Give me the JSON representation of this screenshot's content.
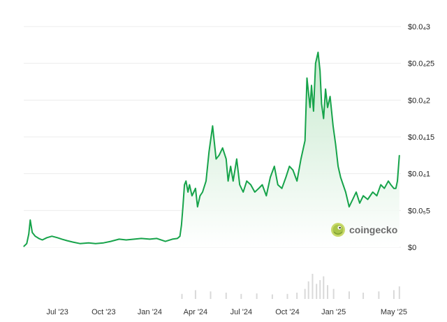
{
  "chart_data": {
    "type": "area",
    "title": "",
    "xlabel": "",
    "ylabel": "",
    "ylim": [
      0,
      3e-05
    ],
    "line_color": "#16a34a",
    "fill_color": "#d7f0dc",
    "volume_color": "#d9d9d9",
    "grid": true,
    "legend": "none",
    "y_ticks": [
      {
        "value": 0,
        "label": "$0"
      },
      {
        "value": 5e-06,
        "label": "$0.0₅5"
      },
      {
        "value": 1e-05,
        "label": "$0.0₄1"
      },
      {
        "value": 1.5e-05,
        "label": "$0.0₄15"
      },
      {
        "value": 2e-05,
        "label": "$0.0₄2"
      },
      {
        "value": 2.5e-05,
        "label": "$0.0₄25"
      },
      {
        "value": 3e-05,
        "label": "$0.0₄3"
      }
    ],
    "x_ticks": [
      {
        "date": "2023-07-01",
        "label": "Jul '23"
      },
      {
        "date": "2023-10-01",
        "label": "Oct '23"
      },
      {
        "date": "2024-01-01",
        "label": "Jan '24"
      },
      {
        "date": "2024-04-01",
        "label": "Apr '24"
      },
      {
        "date": "2024-07-01",
        "label": "Jul '24"
      },
      {
        "date": "2024-10-01",
        "label": "Oct '24"
      },
      {
        "date": "2025-01-01",
        "label": "Jan '25"
      },
      {
        "date": "2025-05-01",
        "label": "May '25"
      }
    ],
    "x_range": [
      "2023-04-25",
      "2025-05-15"
    ],
    "series": [
      {
        "x": [
          "2023-04-25",
          "2023-05-01",
          "2023-05-05",
          "2023-05-08",
          "2023-05-12",
          "2023-05-18",
          "2023-05-25",
          "2023-06-01",
          "2023-06-10",
          "2023-06-20",
          "2023-07-01",
          "2023-07-10",
          "2023-07-20",
          "2023-08-01",
          "2023-08-15",
          "2023-09-01",
          "2023-09-15",
          "2023-10-01",
          "2023-10-15",
          "2023-11-01",
          "2023-11-15",
          "2023-12-01",
          "2023-12-15",
          "2024-01-01",
          "2024-01-15",
          "2024-02-01",
          "2024-02-15",
          "2024-02-25",
          "2024-03-01",
          "2024-03-04",
          "2024-03-07",
          "2024-03-10",
          "2024-03-13",
          "2024-03-17",
          "2024-03-20",
          "2024-03-25",
          "2024-04-01",
          "2024-04-05",
          "2024-04-10",
          "2024-04-15",
          "2024-04-22",
          "2024-04-28",
          "2024-05-05",
          "2024-05-12",
          "2024-05-18",
          "2024-05-25",
          "2024-06-01",
          "2024-06-05",
          "2024-06-10",
          "2024-06-15",
          "2024-06-22",
          "2024-06-28",
          "2024-07-05",
          "2024-07-12",
          "2024-07-20",
          "2024-07-28",
          "2024-08-05",
          "2024-08-12",
          "2024-08-20",
          "2024-08-28",
          "2024-09-05",
          "2024-09-12",
          "2024-09-20",
          "2024-09-28",
          "2024-10-05",
          "2024-10-12",
          "2024-10-20",
          "2024-10-28",
          "2024-11-05",
          "2024-11-09",
          "2024-11-12",
          "2024-11-15",
          "2024-11-18",
          "2024-11-22",
          "2024-11-26",
          "2024-12-01",
          "2024-12-05",
          "2024-12-08",
          "2024-12-12",
          "2024-12-16",
          "2024-12-20",
          "2024-12-25",
          "2024-12-31",
          "2025-01-05",
          "2025-01-10",
          "2025-01-15",
          "2025-01-20",
          "2025-01-25",
          "2025-02-01",
          "2025-02-08",
          "2025-02-15",
          "2025-02-22",
          "2025-03-01",
          "2025-03-10",
          "2025-03-20",
          "2025-03-28",
          "2025-04-05",
          "2025-04-12",
          "2025-04-20",
          "2025-04-25",
          "2025-05-01",
          "2025-05-05",
          "2025-05-08",
          "2025-05-12"
        ],
        "values": [
          1e-07,
          5e-07,
          1.8e-06,
          3.7e-06,
          2e-06,
          1.5e-06,
          1.2e-06,
          1e-06,
          1.3e-06,
          1.5e-06,
          1.3e-06,
          1.1e-06,
          9e-07,
          7e-07,
          5e-07,
          6e-07,
          5e-07,
          6e-07,
          8e-07,
          1.1e-06,
          1e-06,
          1.1e-06,
          1.2e-06,
          1.1e-06,
          1.2e-06,
          8e-07,
          1.1e-06,
          1.2e-06,
          1.5e-06,
          3e-06,
          5.5e-06,
          8.5e-06,
          9e-06,
          7.5e-06,
          8.5e-06,
          7e-06,
          8e-06,
          5.5e-06,
          7e-06,
          7.5e-06,
          9e-06,
          1.3e-05,
          1.65e-05,
          1.2e-05,
          1.25e-05,
          1.35e-05,
          1.2e-05,
          9e-06,
          1.1e-05,
          9e-06,
          1.2e-05,
          8.5e-06,
          7.5e-06,
          9e-06,
          8.5e-06,
          7.5e-06,
          8e-06,
          8.5e-06,
          7e-06,
          9.5e-06,
          1.1e-05,
          8.5e-06,
          8e-06,
          9.5e-06,
          1.1e-05,
          1.05e-05,
          9e-06,
          1.2e-05,
          1.45e-05,
          2.3e-05,
          2.1e-05,
          1.9e-05,
          2.2e-05,
          1.85e-05,
          2.5e-05,
          2.65e-05,
          2.4e-05,
          1.95e-05,
          1.75e-05,
          2.15e-05,
          1.9e-05,
          2.05e-05,
          1.65e-05,
          1.4e-05,
          1.1e-05,
          9.5e-06,
          8.5e-06,
          7.5e-06,
          5.5e-06,
          6.5e-06,
          7.5e-06,
          6e-06,
          7e-06,
          6.5e-06,
          7.5e-06,
          7e-06,
          8.5e-06,
          8e-06,
          9e-06,
          8.5e-06,
          8e-06,
          8e-06,
          9e-06,
          1.25e-05
        ]
      }
    ],
    "volume": {
      "x": [
        "2024-03-05",
        "2024-04-01",
        "2024-05-01",
        "2024-06-01",
        "2024-07-01",
        "2024-08-01",
        "2024-09-01",
        "2024-10-01",
        "2024-10-20",
        "2024-11-05",
        "2024-11-12",
        "2024-11-20",
        "2024-11-28",
        "2024-12-05",
        "2024-12-12",
        "2024-12-20",
        "2025-01-01",
        "2025-02-01",
        "2025-03-01",
        "2025-04-01",
        "2025-05-01",
        "2025-05-12"
      ],
      "values": [
        0.2,
        0.35,
        0.3,
        0.25,
        0.2,
        0.22,
        0.18,
        0.2,
        0.25,
        0.4,
        0.7,
        1.0,
        0.6,
        0.75,
        0.9,
        0.55,
        0.4,
        0.3,
        0.25,
        0.3,
        0.35,
        0.5
      ]
    }
  },
  "watermark": {
    "brand": "coingecko",
    "logo": "gecko-logo-icon"
  }
}
